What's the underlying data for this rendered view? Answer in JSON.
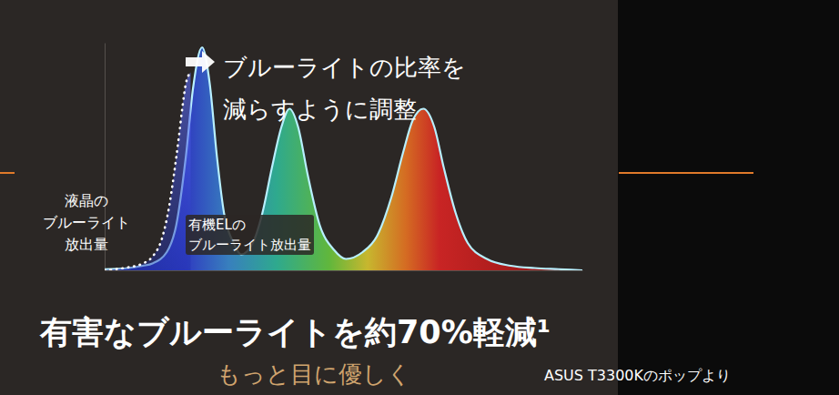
{
  "chart_data": {
    "type": "area",
    "title": "有害なブルーライトを約70%軽減¹",
    "subtitle": "もっと目に優しく",
    "caption": "ASUS T3300Kのポップより",
    "annotations": [
      {
        "text": [
          "ブルーライトの比率を",
          "減らすように調整"
        ]
      },
      {
        "text": [
          "液晶の",
          "ブルーライト",
          "放出量"
        ]
      },
      {
        "text": [
          "有機ELの",
          "ブルーライト放出量"
        ]
      }
    ],
    "xlim": [
      0,
      100
    ],
    "ylim": [
      0,
      100
    ],
    "xticks": [],
    "yticks": [],
    "tick_labels": false,
    "grid": false,
    "series": [
      {
        "color": "#b8f0ff",
        "line_style": "solid",
        "x": [
          0,
          5,
          8,
          10,
          13,
          15,
          17,
          18.5,
          20.4,
          22,
          23.5,
          25,
          27,
          28.6,
          31,
          33,
          35,
          37,
          38.7,
          40.5,
          42.5,
          45,
          48,
          50.5,
          54,
          57,
          60,
          62.5,
          64.5,
          66.7,
          69,
          71,
          73.5,
          76,
          80,
          85,
          90,
          95,
          100
        ],
        "values": [
          0.5,
          1,
          2,
          3,
          8,
          20,
          50,
          80,
          98,
          82,
          50,
          25,
          12,
          7,
          12,
          25,
          45,
          63,
          71,
          63,
          42,
          20,
          9,
          5,
          8,
          15,
          32,
          52,
          66,
          71,
          63,
          45,
          25,
          12,
          5,
          2,
          1,
          0.5,
          0
        ]
      },
      {
        "color": "#ffffff",
        "line_style": "dotted",
        "x": [
          0,
          4,
          8,
          10,
          12,
          13.5,
          14.5,
          15.5,
          16.3,
          17,
          18
        ],
        "values": [
          0,
          1,
          3,
          6,
          14,
          28,
          42,
          58,
          72,
          82,
          87
        ]
      }
    ]
  }
}
